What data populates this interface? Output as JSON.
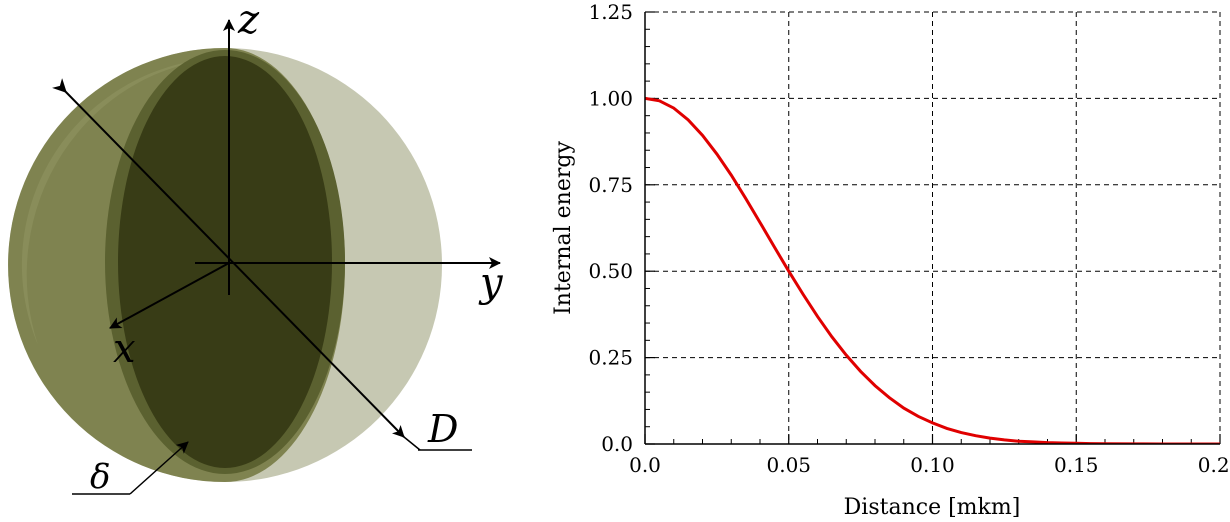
{
  "diagram": {
    "labels": {
      "z": "z",
      "y": "y",
      "x": "x",
      "D": "D",
      "delta": "δ"
    },
    "colors": {
      "outer_sphere": "#c6c8b2",
      "outer_left_shell": "#7f8350",
      "core": "#383c16",
      "core_rim": "#5b6130"
    }
  },
  "chart_data": {
    "type": "line",
    "xlabel": "Distance [mkm]",
    "ylabel": "Internal energy",
    "xlim": [
      0,
      0.2
    ],
    "ylim": [
      0,
      1.25
    ],
    "xticks": [
      "0.0",
      "0.05",
      "0.10",
      "0.15",
      "0.20"
    ],
    "xtick_values": [
      0,
      0.05,
      0.1,
      0.15,
      0.2
    ],
    "yticks": [
      "0.0",
      "0.25",
      "0.50",
      "0.75",
      "1.00",
      "1.25"
    ],
    "ytick_values": [
      0,
      0.25,
      0.5,
      0.75,
      1.0,
      1.25
    ],
    "grid": true,
    "series": [
      {
        "color": "#e00000",
        "x": [
          0,
          0.005,
          0.01,
          0.015,
          0.02,
          0.025,
          0.03,
          0.035,
          0.04,
          0.045,
          0.05,
          0.055,
          0.06,
          0.065,
          0.07,
          0.075,
          0.08,
          0.085,
          0.09,
          0.095,
          0.1,
          0.105,
          0.11,
          0.115,
          0.12,
          0.125,
          0.13,
          0.135,
          0.14,
          0.145,
          0.15,
          0.155,
          0.16,
          0.17,
          0.18,
          0.19,
          0.2
        ],
        "y": [
          1.0,
          0.993,
          0.972,
          0.938,
          0.893,
          0.839,
          0.778,
          0.711,
          0.641,
          0.57,
          0.5,
          0.433,
          0.369,
          0.31,
          0.257,
          0.21,
          0.169,
          0.134,
          0.104,
          0.08,
          0.061,
          0.045,
          0.033,
          0.024,
          0.017,
          0.012,
          0.008,
          0.006,
          0.004,
          0.003,
          0.002,
          0.001,
          0.0007,
          0.0003,
          0.0001,
          5e-05,
          2e-05
        ]
      }
    ]
  }
}
